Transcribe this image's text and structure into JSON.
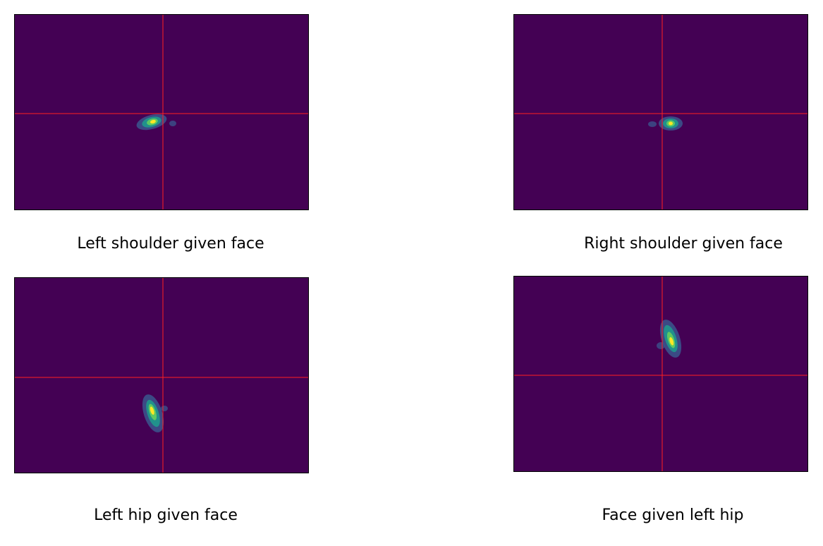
{
  "colors": {
    "background": "#440154",
    "crosshair": "#ff2020",
    "blob_outer": "#3b528b",
    "blob_mid": "#21918c",
    "blob_inner": "#5ec962",
    "blob_core": "#fde725"
  },
  "panels": [
    {
      "caption": "Left shoulder given face"
    },
    {
      "caption": "Right shoulder given face"
    },
    {
      "caption": "Left hip given face"
    },
    {
      "caption": "Face given left hip"
    }
  ]
}
